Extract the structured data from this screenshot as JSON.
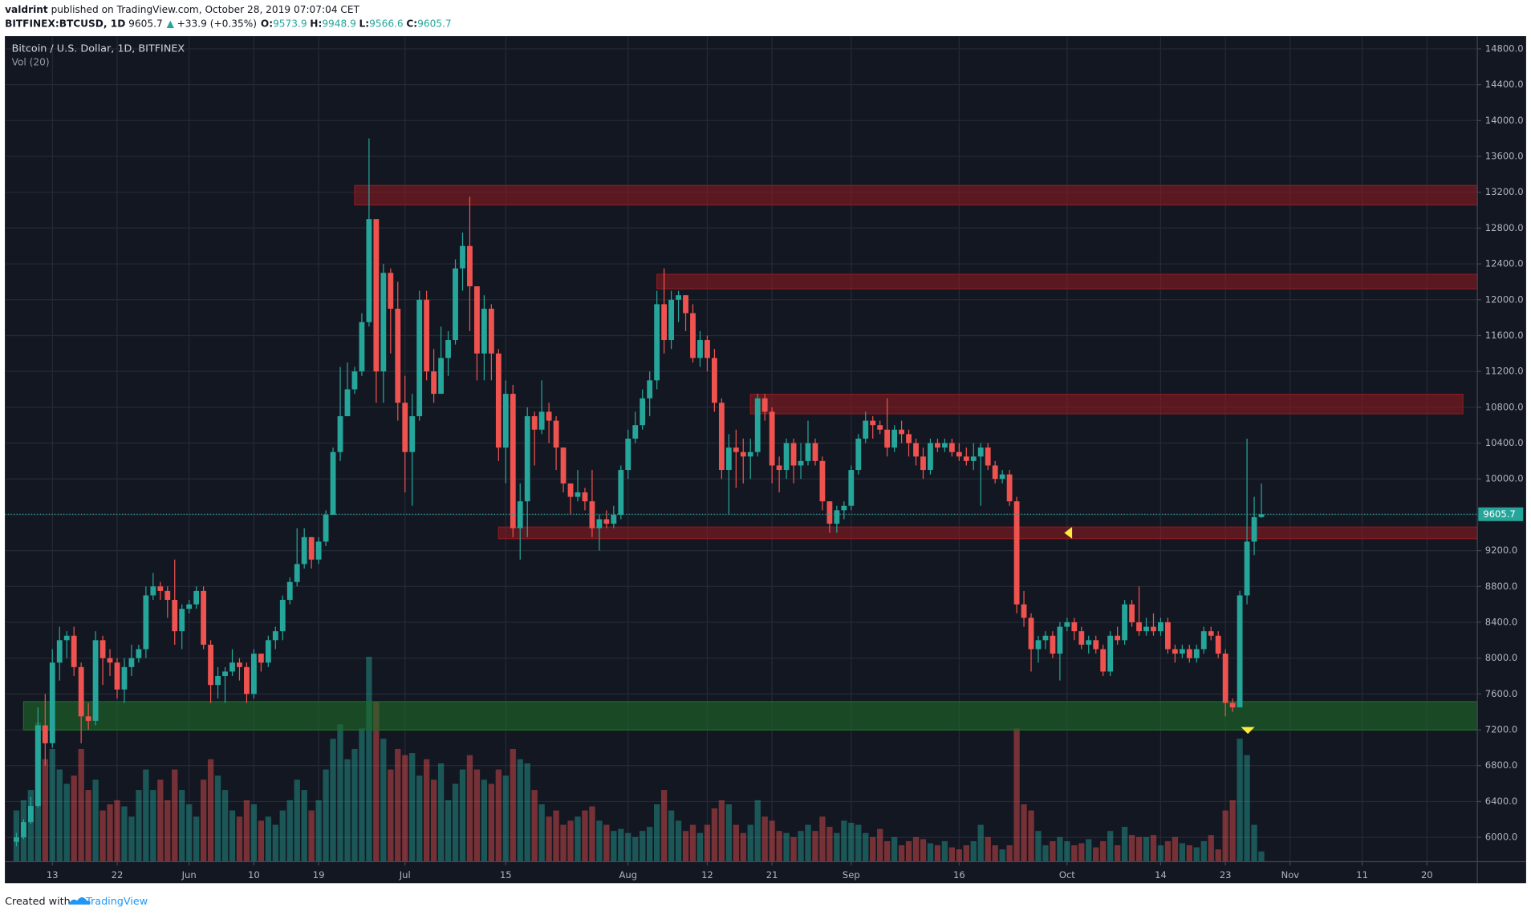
{
  "header": {
    "user": "valdrint",
    "published": "published on TradingView.com, October 28, 2019 07:07:04 CET",
    "symbol": "BITFINEX:BTCUSD, 1D",
    "price": "9605.7",
    "change": "+33.9 (+0.35%)",
    "ohlc": [
      {
        "key": "O:",
        "value": "9573.9"
      },
      {
        "key": "H:",
        "value": "9948.9"
      },
      {
        "key": "L:",
        "value": "9566.6"
      },
      {
        "key": "C:",
        "value": "9605.7"
      }
    ]
  },
  "chart_data": {
    "type": "candlestick",
    "title": "Bitcoin / U.S. Dollar, 1D, BITFINEX",
    "volume_label": "Vol (20)",
    "up_color": "#26a69a",
    "down_color": "#ef5350",
    "grid": true,
    "xlim": [
      -1.6,
      203
    ],
    "ylim": [
      5728,
      14942
    ],
    "xticks": [
      {
        "value": 5,
        "label": "13"
      },
      {
        "value": 14,
        "label": "22"
      },
      {
        "value": 24,
        "label": "Jun"
      },
      {
        "value": 33,
        "label": "10"
      },
      {
        "value": 42,
        "label": "19"
      },
      {
        "value": 54,
        "label": "Jul"
      },
      {
        "value": 68,
        "label": "15"
      },
      {
        "value": 85,
        "label": "Aug"
      },
      {
        "value": 96,
        "label": "12"
      },
      {
        "value": 105,
        "label": "21"
      },
      {
        "value": 116,
        "label": "Sep"
      },
      {
        "value": 131,
        "label": "16"
      },
      {
        "value": 146,
        "label": "Oct"
      },
      {
        "value": 159,
        "label": "14"
      },
      {
        "value": 168,
        "label": "23"
      },
      {
        "value": 177,
        "label": "Nov"
      },
      {
        "value": 187,
        "label": "11"
      },
      {
        "value": 196,
        "label": "20"
      }
    ],
    "yticks": [
      {
        "value": 6000,
        "label": "6000.0"
      },
      {
        "value": 6400,
        "label": "6400.0"
      },
      {
        "value": 6800,
        "label": "6800.0"
      },
      {
        "value": 7200,
        "label": "7200.0"
      },
      {
        "value": 7600,
        "label": "7600.0"
      },
      {
        "value": 8000,
        "label": "8000.0"
      },
      {
        "value": 8400,
        "label": "8400.0"
      },
      {
        "value": 8800,
        "label": "8800.0"
      },
      {
        "value": 9200,
        "label": "9200.0"
      },
      {
        "value": 9600,
        "label": "9600.0"
      },
      {
        "value": 10000,
        "label": "10000.0"
      },
      {
        "value": 10400,
        "label": "10400.0"
      },
      {
        "value": 10800,
        "label": "10800.0"
      },
      {
        "value": 11200,
        "label": "11200.0"
      },
      {
        "value": 11600,
        "label": "11600.0"
      },
      {
        "value": 12000,
        "label": "12000.0"
      },
      {
        "value": 12400,
        "label": "12400.0"
      },
      {
        "value": 12800,
        "label": "12800.0"
      },
      {
        "value": 13200,
        "label": "13200.0"
      },
      {
        "value": 13600,
        "label": "13600.0"
      },
      {
        "value": 14000,
        "label": "14000.0"
      },
      {
        "value": 14400,
        "label": "14400.0"
      },
      {
        "value": 14800,
        "label": "14800.0"
      }
    ],
    "last_price": 9605.7,
    "zones": [
      {
        "low": 13057,
        "high": 13275,
        "start": 47,
        "end": 203,
        "color": "#8b1a1f"
      },
      {
        "low": 12121,
        "high": 12284,
        "start": 89,
        "end": 203,
        "color": "#8b1a1f"
      },
      {
        "low": 10727,
        "high": 10945,
        "start": 102,
        "end": 201,
        "color": "#8b1a1f"
      },
      {
        "low": 9333,
        "high": 9463,
        "start": 67,
        "end": 203,
        "color": "#8b1a1f"
      },
      {
        "low": 7198,
        "high": 7514,
        "start": 1,
        "end": 203,
        "color": "#1f6b2a"
      }
    ],
    "ohlc": [
      [
        5950,
        6050,
        5900,
        6000
      ],
      [
        6000,
        6200,
        5980,
        6170
      ],
      [
        6170,
        6450,
        6150,
        6350
      ],
      [
        6350,
        7450,
        6330,
        7250
      ],
      [
        7250,
        7600,
        6800,
        7050
      ],
      [
        7050,
        8100,
        7000,
        7950
      ],
      [
        7950,
        8350,
        7750,
        8200
      ],
      [
        8200,
        8300,
        8000,
        8250
      ],
      [
        8250,
        8350,
        7800,
        7900
      ],
      [
        7900,
        7950,
        7050,
        7350
      ],
      [
        7350,
        7500,
        7200,
        7300
      ],
      [
        7300,
        8300,
        7250,
        8200
      ],
      [
        8200,
        8250,
        7700,
        8000
      ],
      [
        8000,
        8100,
        7800,
        7950
      ],
      [
        7950,
        8000,
        7550,
        7650
      ],
      [
        7650,
        8000,
        7500,
        7900
      ],
      [
        7900,
        8150,
        7800,
        8000
      ],
      [
        8000,
        8150,
        7950,
        8100
      ],
      [
        8100,
        8800,
        8000,
        8700
      ],
      [
        8700,
        8950,
        8650,
        8800
      ],
      [
        8800,
        8850,
        8650,
        8750
      ],
      [
        8750,
        8800,
        8450,
        8650
      ],
      [
        8650,
        9100,
        8150,
        8300
      ],
      [
        8300,
        8600,
        8100,
        8550
      ],
      [
        8550,
        8650,
        8500,
        8600
      ],
      [
        8600,
        8800,
        8550,
        8750
      ],
      [
        8750,
        8800,
        8100,
        8150
      ],
      [
        8150,
        8200,
        7500,
        7700
      ],
      [
        7700,
        7900,
        7550,
        7800
      ],
      [
        7800,
        7900,
        7500,
        7850
      ],
      [
        7850,
        8100,
        7800,
        7950
      ],
      [
        7950,
        8000,
        7750,
        7900
      ],
      [
        7900,
        7950,
        7500,
        7600
      ],
      [
        7600,
        8100,
        7550,
        8050
      ],
      [
        8050,
        8050,
        7850,
        7950
      ],
      [
        7950,
        8250,
        7900,
        8200
      ],
      [
        8200,
        8350,
        8100,
        8300
      ],
      [
        8300,
        8700,
        8200,
        8650
      ],
      [
        8650,
        8900,
        8600,
        8850
      ],
      [
        8850,
        9450,
        8800,
        9050
      ],
      [
        9050,
        9450,
        9000,
        9350
      ],
      [
        9350,
        9350,
        9000,
        9100
      ],
      [
        9100,
        9350,
        9050,
        9300
      ],
      [
        9300,
        9650,
        9250,
        9600
      ],
      [
        9600,
        10350,
        9600,
        10300
      ],
      [
        10300,
        11250,
        10200,
        10700
      ],
      [
        10700,
        11300,
        10700,
        11000
      ],
      [
        11000,
        11250,
        10950,
        11200
      ],
      [
        11200,
        11850,
        11150,
        11750
      ],
      [
        11750,
        13800,
        11700,
        12900
      ],
      [
        12900,
        12900,
        10850,
        11200
      ],
      [
        11200,
        12400,
        10850,
        12300
      ],
      [
        12300,
        12350,
        11400,
        11900
      ],
      [
        11900,
        12200,
        10650,
        10850
      ],
      [
        10850,
        11150,
        9850,
        10300
      ],
      [
        10300,
        10950,
        9700,
        10700
      ],
      [
        10700,
        12100,
        10650,
        12000
      ],
      [
        12000,
        12100,
        11100,
        11200
      ],
      [
        11200,
        11450,
        10850,
        10950
      ],
      [
        10950,
        11700,
        10950,
        11350
      ],
      [
        11350,
        11650,
        11150,
        11550
      ],
      [
        11550,
        12450,
        11500,
        12350
      ],
      [
        12350,
        12750,
        12100,
        12600
      ],
      [
        12600,
        13150,
        11650,
        12150
      ],
      [
        12150,
        12150,
        11100,
        11400
      ],
      [
        11400,
        12050,
        11100,
        11900
      ],
      [
        11900,
        11950,
        11100,
        11400
      ],
      [
        11400,
        11450,
        10200,
        10350
      ],
      [
        10350,
        11100,
        9950,
        10950
      ],
      [
        10950,
        11050,
        9350,
        9450
      ],
      [
        9450,
        9950,
        9100,
        9750
      ],
      [
        9750,
        10800,
        9350,
        10700
      ],
      [
        10700,
        10750,
        10150,
        10550
      ],
      [
        10550,
        11100,
        10500,
        10750
      ],
      [
        10750,
        10850,
        10400,
        10650
      ],
      [
        10650,
        10700,
        10100,
        10350
      ],
      [
        10350,
        10350,
        9850,
        9950
      ],
      [
        9950,
        9950,
        9600,
        9800
      ],
      [
        9800,
        10100,
        9750,
        9850
      ],
      [
        9850,
        9900,
        9650,
        9750
      ],
      [
        9750,
        10100,
        9350,
        9450
      ],
      [
        9450,
        9600,
        9200,
        9550
      ],
      [
        9550,
        9650,
        9450,
        9500
      ],
      [
        9500,
        9700,
        9450,
        9600
      ],
      [
        9600,
        10150,
        9550,
        10100
      ],
      [
        10100,
        10550,
        10000,
        10450
      ],
      [
        10450,
        10750,
        10400,
        10600
      ],
      [
        10600,
        11000,
        10550,
        10900
      ],
      [
        10900,
        11200,
        10700,
        11100
      ],
      [
        11100,
        12100,
        11000,
        11950
      ],
      [
        11950,
        12350,
        11400,
        11550
      ],
      [
        11550,
        12100,
        11450,
        12000
      ],
      [
        12000,
        12100,
        11750,
        12050
      ],
      [
        12050,
        12050,
        11650,
        11850
      ],
      [
        11850,
        11950,
        11300,
        11350
      ],
      [
        11350,
        11650,
        11250,
        11550
      ],
      [
        11550,
        11600,
        11200,
        11350
      ],
      [
        11350,
        11450,
        10750,
        10850
      ],
      [
        10850,
        10900,
        10000,
        10100
      ],
      [
        10100,
        10500,
        9600,
        10350
      ],
      [
        10350,
        10550,
        9900,
        10300
      ],
      [
        10300,
        10450,
        9950,
        10250
      ],
      [
        10250,
        10450,
        10000,
        10300
      ],
      [
        10300,
        10950,
        10250,
        10900
      ],
      [
        10900,
        10950,
        10650,
        10750
      ],
      [
        10750,
        10800,
        9950,
        10150
      ],
      [
        10150,
        10250,
        9850,
        10100
      ],
      [
        10100,
        10450,
        10000,
        10400
      ],
      [
        10400,
        10450,
        9950,
        10150
      ],
      [
        10150,
        10400,
        10000,
        10200
      ],
      [
        10200,
        10650,
        10150,
        10400
      ],
      [
        10400,
        10450,
        10150,
        10200
      ],
      [
        10200,
        10250,
        9650,
        9750
      ],
      [
        9750,
        9750,
        9400,
        9500
      ],
      [
        9500,
        9700,
        9400,
        9650
      ],
      [
        9650,
        9750,
        9550,
        9700
      ],
      [
        9700,
        10150,
        9650,
        10100
      ],
      [
        10100,
        10500,
        10050,
        10450
      ],
      [
        10450,
        10750,
        10400,
        10650
      ],
      [
        10650,
        10700,
        10450,
        10600
      ],
      [
        10600,
        10650,
        10500,
        10550
      ],
      [
        10550,
        10900,
        10250,
        10350
      ],
      [
        10350,
        10600,
        10300,
        10550
      ],
      [
        10550,
        10650,
        10400,
        10500
      ],
      [
        10500,
        10550,
        10250,
        10400
      ],
      [
        10400,
        10450,
        10150,
        10250
      ],
      [
        10250,
        10350,
        10000,
        10100
      ],
      [
        10100,
        10450,
        10050,
        10400
      ],
      [
        10400,
        10450,
        10300,
        10350
      ],
      [
        10350,
        10450,
        10300,
        10400
      ],
      [
        10400,
        10450,
        10250,
        10300
      ],
      [
        10300,
        10400,
        10200,
        10250
      ],
      [
        10250,
        10350,
        10150,
        10200
      ],
      [
        10200,
        10400,
        10100,
        10250
      ],
      [
        10250,
        10400,
        9700,
        10350
      ],
      [
        10350,
        10400,
        10100,
        10150
      ],
      [
        10150,
        10200,
        9950,
        10000
      ],
      [
        10000,
        10100,
        9950,
        10050
      ],
      [
        10050,
        10100,
        9700,
        9750
      ],
      [
        9750,
        9800,
        8500,
        8600
      ],
      [
        8600,
        8750,
        8350,
        8450
      ],
      [
        8450,
        8500,
        7850,
        8100
      ],
      [
        8100,
        8250,
        7950,
        8200
      ],
      [
        8200,
        8300,
        8100,
        8250
      ],
      [
        8250,
        8300,
        8000,
        8050
      ],
      [
        8050,
        8400,
        7750,
        8350
      ],
      [
        8350,
        8450,
        8300,
        8400
      ],
      [
        8400,
        8450,
        8200,
        8300
      ],
      [
        8300,
        8350,
        8100,
        8150
      ],
      [
        8150,
        8250,
        8050,
        8200
      ],
      [
        8200,
        8250,
        8050,
        8100
      ],
      [
        8100,
        8150,
        7800,
        7850
      ],
      [
        7850,
        8300,
        7800,
        8250
      ],
      [
        8250,
        8350,
        8150,
        8200
      ],
      [
        8200,
        8650,
        8150,
        8600
      ],
      [
        8600,
        8650,
        8350,
        8400
      ],
      [
        8400,
        8800,
        8250,
        8300
      ],
      [
        8300,
        8450,
        8250,
        8350
      ],
      [
        8350,
        8500,
        8250,
        8300
      ],
      [
        8300,
        8450,
        8250,
        8400
      ],
      [
        8400,
        8450,
        8050,
        8100
      ],
      [
        8100,
        8150,
        7950,
        8050
      ],
      [
        8050,
        8150,
        8000,
        8100
      ],
      [
        8100,
        8150,
        7950,
        8000
      ],
      [
        8000,
        8150,
        7950,
        8100
      ],
      [
        8100,
        8350,
        8050,
        8300
      ],
      [
        8300,
        8350,
        8200,
        8250
      ],
      [
        8250,
        8300,
        8000,
        8050
      ],
      [
        8050,
        8100,
        7350,
        7500
      ],
      [
        7500,
        7550,
        7400,
        7450
      ],
      [
        7450,
        8750,
        7450,
        8700
      ],
      [
        8700,
        10450,
        8600,
        9300
      ],
      [
        9300,
        9800,
        9150,
        9573.9
      ],
      [
        9573.9,
        9948.9,
        9566.6,
        9605.7
      ]
    ],
    "volume": [
      25,
      30,
      35,
      68,
      50,
      55,
      45,
      38,
      42,
      55,
      35,
      40,
      25,
      28,
      30,
      27,
      22,
      35,
      45,
      35,
      40,
      30,
      45,
      35,
      28,
      22,
      40,
      50,
      42,
      35,
      25,
      22,
      30,
      28,
      20,
      22,
      18,
      25,
      30,
      40,
      35,
      25,
      30,
      45,
      60,
      67,
      50,
      55,
      65,
      100,
      78,
      60,
      45,
      55,
      52,
      53,
      42,
      50,
      40,
      48,
      30,
      38,
      45,
      52,
      45,
      40,
      38,
      45,
      42,
      55,
      50,
      48,
      35,
      28,
      22,
      25,
      18,
      20,
      22,
      25,
      27,
      20,
      18,
      15,
      16,
      14,
      12,
      15,
      17,
      28,
      35,
      25,
      20,
      15,
      18,
      14,
      18,
      26,
      30,
      28,
      18,
      14,
      18,
      30,
      22,
      20,
      15,
      14,
      12,
      15,
      18,
      15,
      22,
      17,
      14,
      20,
      19,
      18,
      14,
      12,
      16,
      10,
      12,
      8,
      10,
      12,
      11,
      9,
      8,
      10,
      7,
      6,
      8,
      10,
      18,
      12,
      8,
      6,
      8,
      65,
      28,
      25,
      15,
      8,
      10,
      12,
      10,
      8,
      9,
      11,
      7,
      10,
      15,
      8,
      17,
      13,
      12,
      12,
      13,
      8,
      10,
      12,
      9,
      8,
      7,
      10,
      13,
      6,
      25,
      30,
      60,
      52,
      18,
      5
    ]
  },
  "footer": {
    "created": "Created with",
    "brand": "TradingView"
  }
}
